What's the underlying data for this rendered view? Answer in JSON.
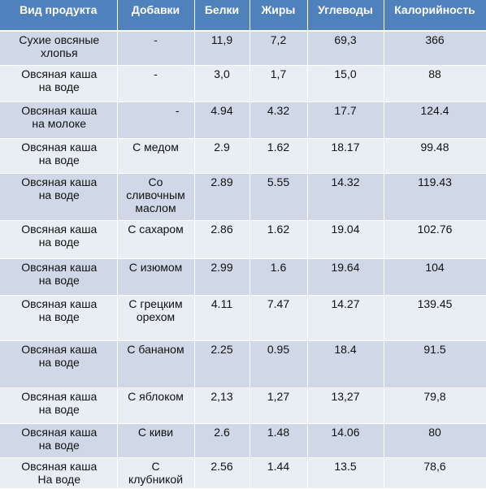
{
  "table": {
    "headers": [
      "Вид продукта",
      "Добавки",
      "Белки",
      "Жиры",
      "Углеводы",
      "Калорийность"
    ],
    "rows": [
      {
        "product": [
          "Сухие овсяные",
          "хлопья"
        ],
        "additive": [
          "-"
        ],
        "protein": "11,9",
        "fat": "7,2",
        "carbs": "69,3",
        "kcal": "366"
      },
      {
        "product": [
          "Овсяная каша",
          "на воде"
        ],
        "additive": [
          "-"
        ],
        "protein": "3,0",
        "fat": "1,7",
        "carbs": "15,0",
        "kcal": "88"
      },
      {
        "product": [
          "Овсяная каша",
          "на молоке"
        ],
        "additive": [
          "-"
        ],
        "protein": "4.94",
        "fat": "4.32",
        "carbs": "17.7",
        "kcal": "124.4"
      },
      {
        "product": [
          "Овсяная каша",
          "на воде"
        ],
        "additive": [
          "С медом"
        ],
        "protein": "2.9",
        "fat": "1.62",
        "carbs": "18.17",
        "kcal": "99.48"
      },
      {
        "product": [
          "Овсяная каша",
          "на воде"
        ],
        "additive": [
          "Со",
          "сливочным",
          "маслом"
        ],
        "protein": "2.89",
        "fat": "5.55",
        "carbs": "14.32",
        "kcal": "119.43"
      },
      {
        "product": [
          "Овсяная каша",
          "на воде"
        ],
        "additive": [
          "С сахаром"
        ],
        "protein": "2.86",
        "fat": "1.62",
        "carbs": "19.04",
        "kcal": "102.76"
      },
      {
        "product": [
          "Овсяная каша",
          "на воде"
        ],
        "additive": [
          "С изюмом"
        ],
        "protein": "2.99",
        "fat": "1.6",
        "carbs": "19.64",
        "kcal": "104"
      },
      {
        "product": [
          "Овсяная каша",
          "на воде"
        ],
        "additive": [
          "С грецким",
          "орехом"
        ],
        "protein": "4.11",
        "fat": "7.47",
        "carbs": "14.27",
        "kcal": "139.45"
      },
      {
        "product": [
          "Овсяная каша",
          "на воде"
        ],
        "additive": [
          "С бананом"
        ],
        "protein": "2.25",
        "fat": "0.95",
        "carbs": "18.4",
        "kcal": "91.5"
      },
      {
        "product": [
          "Овсяная каша",
          "на воде"
        ],
        "additive": [
          "С яблоком"
        ],
        "protein": "2,13",
        "fat": "1,27",
        "carbs": "13,27",
        "kcal": "79,8"
      },
      {
        "product": [
          "Овсяная каша",
          "на воде"
        ],
        "additive": [
          "С киви"
        ],
        "protein": "2.6",
        "fat": "1.48",
        "carbs": "14.06",
        "kcal": "80"
      },
      {
        "product": [
          "Овсяная каша",
          "На воде"
        ],
        "additive": [
          "С",
          "клубникой"
        ],
        "protein": "2.56",
        "fat": "1.44",
        "carbs": "13.5",
        "kcal": "78,6"
      }
    ]
  },
  "colors": {
    "header_bg": "#4f81bd",
    "row_odd_bg": "#d0d8e8",
    "row_even_bg": "#e9edf4"
  }
}
